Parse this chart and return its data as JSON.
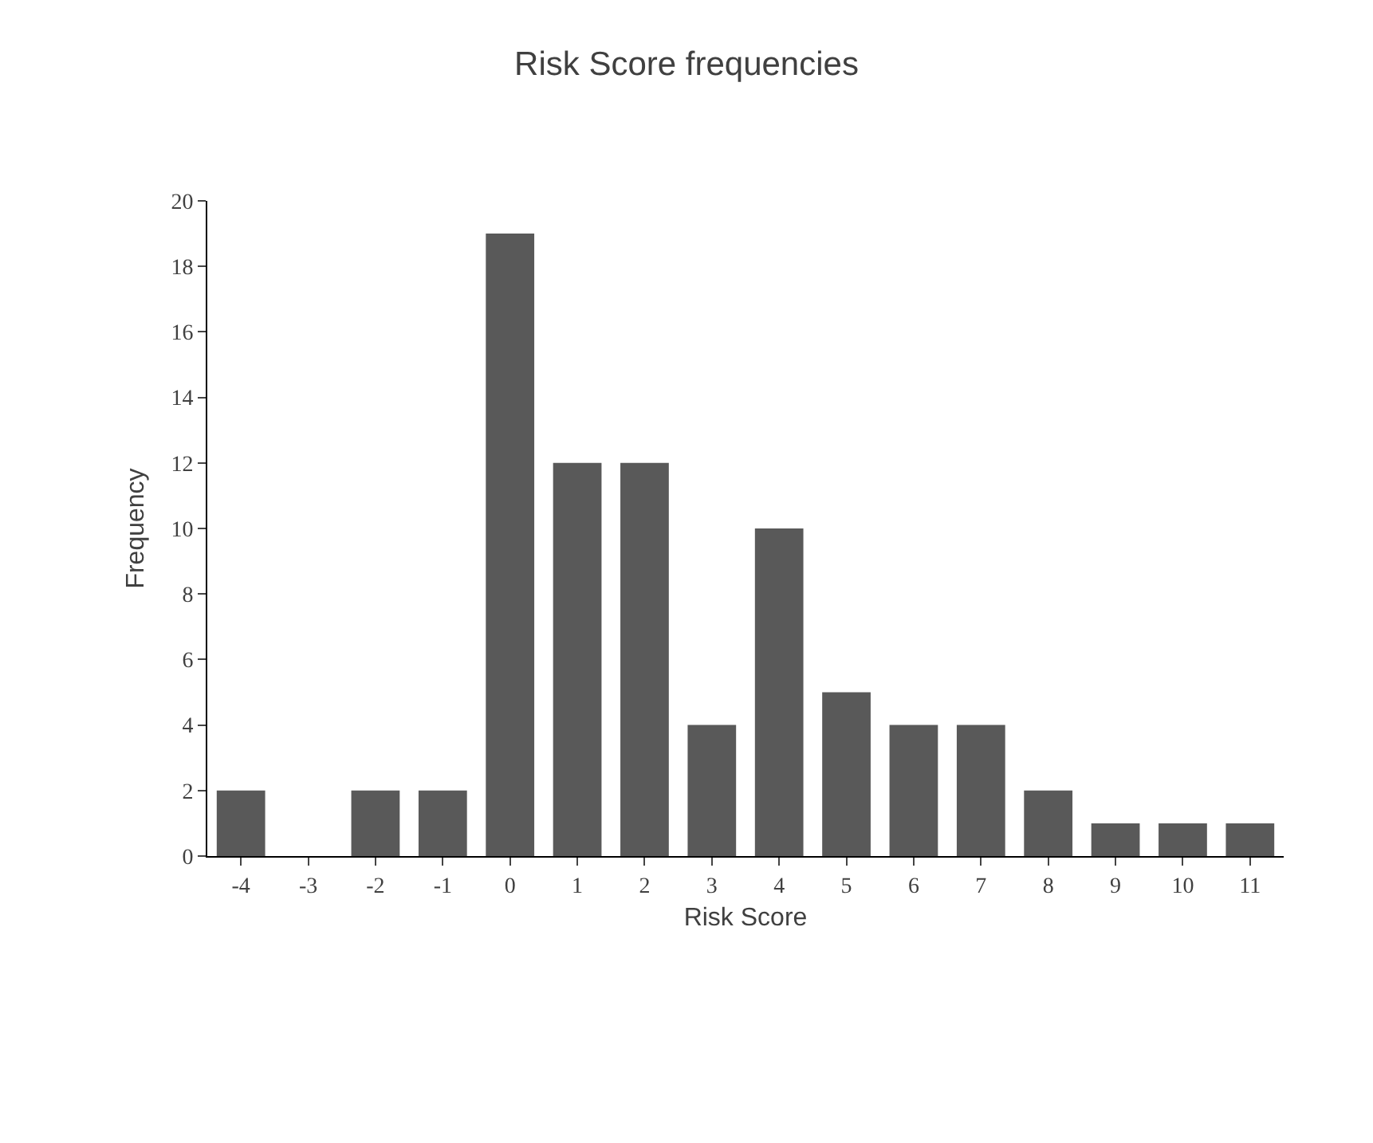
{
  "chart_data": {
    "type": "bar",
    "title": "Risk Score frequencies",
    "xlabel": "Risk Score",
    "ylabel": "Frequency",
    "categories": [
      "-4",
      "-3",
      "-2",
      "-1",
      "0",
      "1",
      "2",
      "3",
      "4",
      "5",
      "6",
      "7",
      "8",
      "9",
      "10",
      "11"
    ],
    "values": [
      2,
      0,
      2,
      2,
      19,
      12,
      12,
      4,
      10,
      5,
      4,
      4,
      2,
      1,
      1,
      1
    ],
    "color": "#595959",
    "ylim": [
      0,
      20
    ],
    "yticks": [
      0,
      2,
      4,
      6,
      8,
      10,
      12,
      14,
      16,
      18,
      20
    ]
  }
}
